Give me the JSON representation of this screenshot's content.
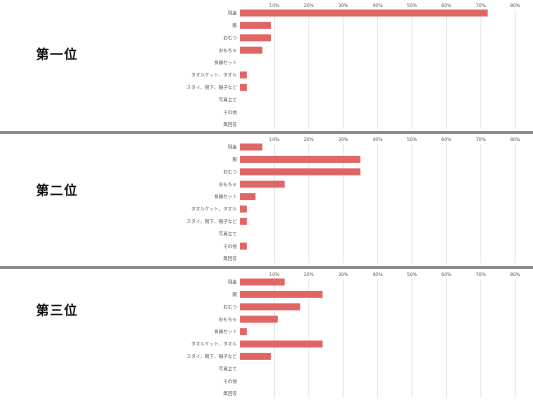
{
  "colors": {
    "bar": "#e06666",
    "grid": "#e3e3e3",
    "divider": "#8a8a8a"
  },
  "chart_data": [
    {
      "type": "bar",
      "orientation": "horizontal",
      "title": "第一位",
      "categories": [
        "現金",
        "服",
        "おむつ",
        "おもちゃ",
        "食器セット",
        "タオルケット、タオル",
        "スタイ、靴下、帽子など",
        "写真立て",
        "その他",
        "無回答"
      ],
      "values": [
        72,
        9,
        9,
        6.5,
        0,
        2,
        2,
        0,
        0,
        0
      ],
      "xlim": [
        0,
        80
      ],
      "xticks": [
        "10%",
        "20%",
        "30%",
        "40%",
        "50%",
        "60%",
        "70%",
        "80%"
      ],
      "grid": true
    },
    {
      "type": "bar",
      "orientation": "horizontal",
      "title": "第二位",
      "categories": [
        "現金",
        "服",
        "おむつ",
        "おもちゃ",
        "食器セット",
        "タオルケット、タオル",
        "スタイ、靴下、帽子など",
        "写真立て",
        "その他",
        "無回答"
      ],
      "values": [
        6.5,
        35,
        35,
        13,
        4.5,
        2,
        2,
        0,
        2,
        0
      ],
      "xlim": [
        0,
        80
      ],
      "xticks": [
        "10%",
        "20%",
        "30%",
        "40%",
        "50%",
        "60%",
        "70%",
        "80%"
      ],
      "grid": true
    },
    {
      "type": "bar",
      "orientation": "horizontal",
      "title": "第三位",
      "categories": [
        "現金",
        "服",
        "おむつ",
        "おもちゃ",
        "食器セット",
        "タオルケット、タオル",
        "スタイ、靴下、帽子など",
        "写真立て",
        "その他",
        "無回答"
      ],
      "values": [
        13,
        24,
        17.5,
        11,
        2,
        24,
        9,
        0,
        0,
        0
      ],
      "xlim": [
        0,
        80
      ],
      "xticks": [
        "10%",
        "20%",
        "30%",
        "40%",
        "50%",
        "60%",
        "70%",
        "80%"
      ],
      "grid": true
    }
  ]
}
